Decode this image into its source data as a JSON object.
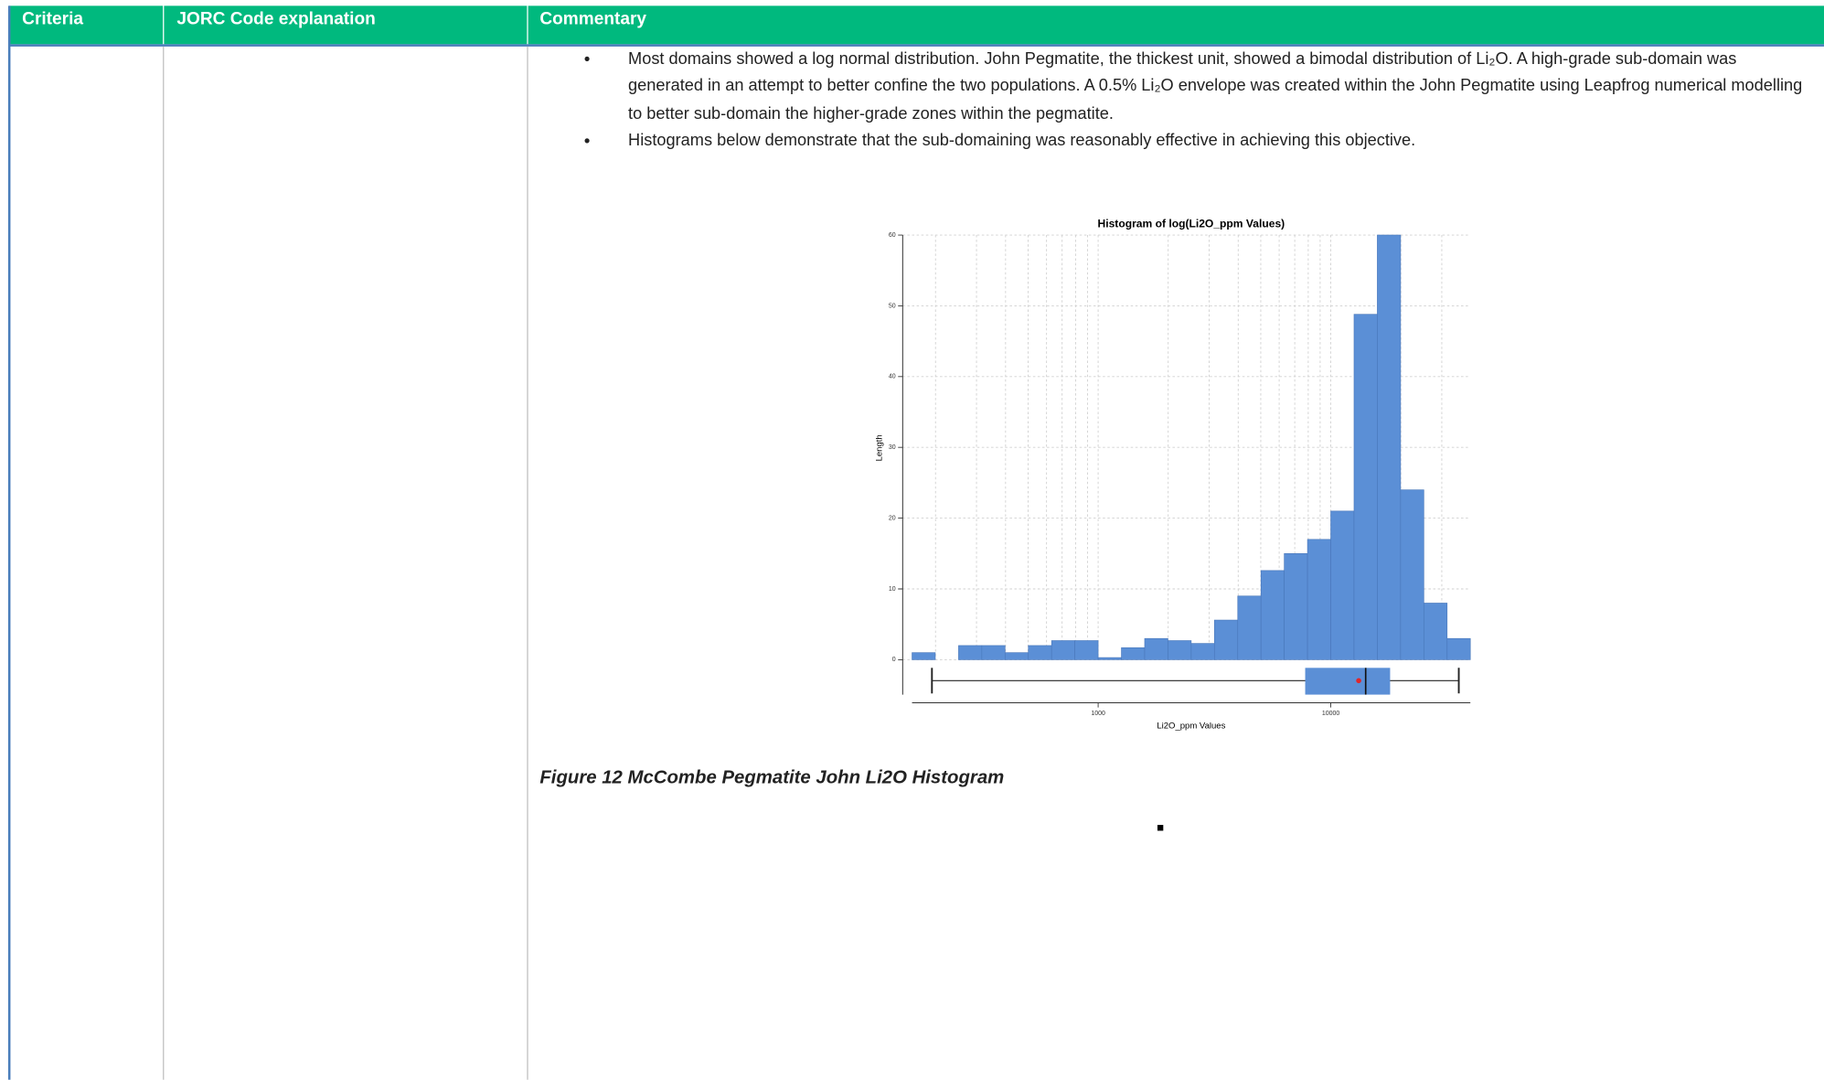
{
  "table": {
    "headers": [
      "Criteria",
      "JORC Code explanation",
      "Commentary"
    ]
  },
  "bullets": [
    "Most domains showed a log normal distribution. John Pegmatite, the thickest unit, showed a bimodal distribution of Li₂O. A high-grade sub-domain was generated in an attempt to better confine the two populations. A 0.5% Li₂O envelope was created within the John Pegmatite using Leapfrog numerical modelling to better sub-domain the higher-grade zones within the pegmatite.",
    "Histograms below demonstrate that the sub-domaining was reasonably effective in achieving this objective."
  ],
  "chart_data": {
    "type": "histogram",
    "title": "Histogram of log(Li2O_ppm Values)",
    "x_label": "Li2O_ppm Values",
    "y_label": "Length",
    "x_log": true,
    "bins": [
      158.5,
      199.5,
      251.2,
      316.2,
      398.1,
      501.2,
      631,
      794.3,
      1000,
      1258.9,
      1584.9,
      1995.3,
      2511.9,
      3162.3,
      3981.1,
      5011.9,
      6309.6,
      7943.3,
      10000,
      12589,
      15849,
      19953,
      25119,
      31623,
      39811
    ],
    "values": [
      1,
      0,
      2,
      2,
      1,
      2,
      2.7,
      2.7,
      0.3,
      1.7,
      3,
      2.7,
      2.3,
      5.6,
      9,
      12.6,
      15,
      17,
      21,
      48.8,
      60,
      24,
      8,
      3
    ],
    "color": "#5b8fd6",
    "xlim": [
      144.5,
      39811
    ],
    "xticks": [
      1000,
      10000
    ],
    "xgrid": [
      200,
      300,
      400,
      500,
      600,
      700,
      800,
      900,
      1000,
      2000,
      3000,
      4000,
      5000,
      6000,
      7000,
      8000,
      9000,
      10000,
      20000,
      30000
    ],
    "ylim": [
      0,
      60
    ],
    "yticks": [
      0,
      10,
      20,
      30,
      40,
      50,
      60
    ],
    "grid": true,
    "boxplot": {
      "min": 193,
      "q1": 7762,
      "median": 14125,
      "q3": 17990,
      "max": 35500,
      "mean": 13183,
      "mean_color": "#e0262b"
    }
  },
  "caption": "Figure 12 McCombe Pegmatite John Li2O Histogram"
}
